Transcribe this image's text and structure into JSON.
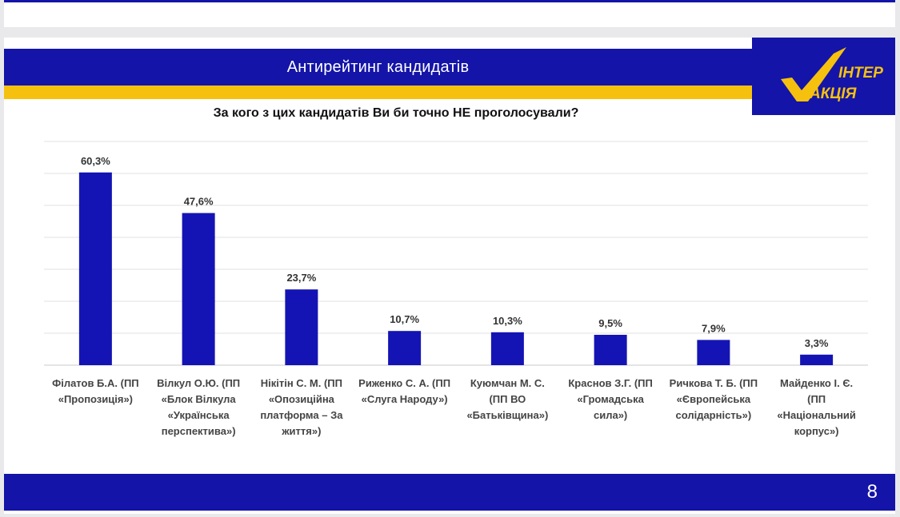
{
  "slide": {
    "title": "Антирейтинг кандидатів",
    "page_number": "8",
    "logo": {
      "word_top": "ІНТЕР",
      "word_bottom": "АКЦІЯ"
    },
    "colors": {
      "brand_blue": "#1414a8",
      "accent_yellow": "#f6c10e",
      "bar": "#1414b4"
    }
  },
  "chart_data": {
    "type": "bar",
    "title": "За кого з цих кандидатів Ви би точно НЕ проголосували?",
    "categories": [
      [
        "Філатов Б.А. (ПП",
        "«Пропозиція»)"
      ],
      [
        "Вілкул О.Ю. (ПП",
        "«Блок Вілкула",
        "«Українська",
        "перспектива»)"
      ],
      [
        "Нікітін С. М. (ПП",
        "«Опозиційна",
        "платформа – За",
        "життя»)"
      ],
      [
        "Риженко С. А. (ПП",
        "«Слуга Народу»)"
      ],
      [
        "Куюмчан М. С.",
        "(ПП ВО",
        "«Батьківщина»)"
      ],
      [
        "Краснов З.Г. (ПП",
        "«Громадська",
        "сила»)"
      ],
      [
        "Ричкова Т. Б. (ПП",
        "«Європейська",
        "солідарність»)"
      ],
      [
        "Майденко І. Є.",
        "(ПП",
        "«Національний",
        "корпус»)"
      ]
    ],
    "values": [
      60.3,
      47.6,
      23.7,
      10.7,
      10.3,
      9.5,
      7.9,
      3.3
    ],
    "data_labels": [
      "60,3%",
      "47,6%",
      "23,7%",
      "10,7%",
      "10,3%",
      "9,5%",
      "7,9%",
      "3,3%"
    ],
    "ylim": [
      0,
      70
    ],
    "grid": true,
    "legend": "none"
  }
}
